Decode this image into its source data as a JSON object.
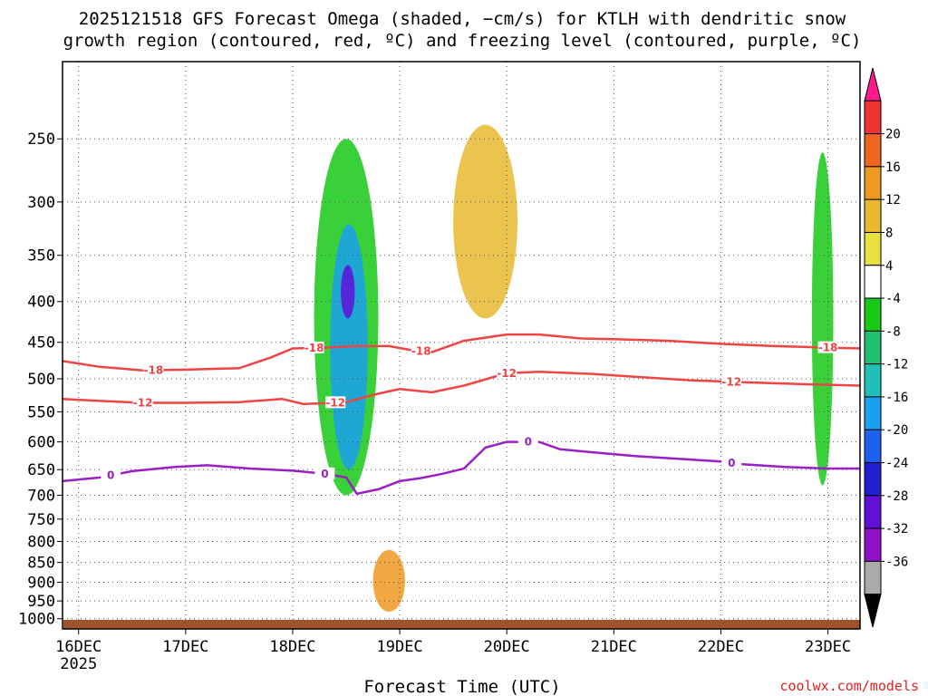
{
  "title_lines": [
    "2025121518 GFS Forecast Omega (shaded, −cm/s) for KTLH with dendritic snow",
    "growth region (contoured, red, ºC) and freezing level (contoured, purple, ºC)"
  ],
  "xlabel": "Forecast Time (UTC)",
  "credit": "coolwx.com/models",
  "colors": {
    "red_contour": "#ee4444",
    "purple_contour": "#9a1fc4",
    "terrain": "#a0522d",
    "grid": "#555555"
  },
  "chart_data": {
    "type": "heatmap",
    "title": "2025121518 GFS Forecast Omega (shaded, −cm/s) for KTLH with dendritic snow growth region (contoured, red, ºC) and freezing level (contoured, purple, ºC)",
    "xlabel": "Forecast Time (UTC)",
    "ylabel": "",
    "x_unit": "days from 16DEC 00Z",
    "x_range": [
      -0.15,
      7.3
    ],
    "y_scale": "log",
    "y_range": [
      1030,
      200
    ],
    "x_ticks": [
      {
        "x": 0,
        "label": "16DEC",
        "sub": "2025"
      },
      {
        "x": 1,
        "label": "17DEC",
        "sub": ""
      },
      {
        "x": 2,
        "label": "18DEC",
        "sub": ""
      },
      {
        "x": 3,
        "label": "19DEC",
        "sub": ""
      },
      {
        "x": 4,
        "label": "20DEC",
        "sub": ""
      },
      {
        "x": 5,
        "label": "21DEC",
        "sub": ""
      },
      {
        "x": 6,
        "label": "22DEC",
        "sub": ""
      },
      {
        "x": 7,
        "label": "23DEC",
        "sub": ""
      }
    ],
    "y_ticks": [
      250,
      300,
      350,
      400,
      450,
      500,
      550,
      600,
      650,
      700,
      750,
      800,
      850,
      900,
      950,
      1000
    ],
    "colorbar": {
      "labels": [
        "20",
        "16",
        "12",
        "8",
        "4",
        "-4",
        "-8",
        "-12",
        "-16",
        "-20",
        "-24",
        "-28",
        "-32",
        "-36"
      ],
      "colors": [
        "#ff1a8c",
        "#ee3333",
        "#ee6622",
        "#ee9922",
        "#e8b830",
        "#e8e040",
        "#ffffff",
        "#18c818",
        "#20c070",
        "#20c0b8",
        "#1aa0f0",
        "#2060f0",
        "#2020d0",
        "#6010d8",
        "#9010c8",
        "#aaaaaa",
        "#000000"
      ]
    },
    "contours": [
      {
        "name": "-18",
        "color": "#ee4444",
        "label_x": [
          0.7,
          2.2,
          3.2,
          7.0
        ],
        "points": [
          [
            -0.15,
            475
          ],
          [
            0.2,
            483
          ],
          [
            0.6,
            488
          ],
          [
            1.0,
            487
          ],
          [
            1.5,
            485
          ],
          [
            1.8,
            470
          ],
          [
            2.0,
            458
          ],
          [
            2.3,
            457
          ],
          [
            2.6,
            455
          ],
          [
            2.9,
            455
          ],
          [
            3.1,
            460
          ],
          [
            3.3,
            463
          ],
          [
            3.6,
            448
          ],
          [
            4.0,
            440
          ],
          [
            4.3,
            440
          ],
          [
            4.7,
            445
          ],
          [
            5.0,
            446
          ],
          [
            5.5,
            448
          ],
          [
            6.0,
            452
          ],
          [
            6.5,
            455
          ],
          [
            7.0,
            457
          ],
          [
            7.3,
            458
          ]
        ]
      },
      {
        "name": "-12",
        "color": "#ee4444",
        "label_x": [
          0.6,
          2.4,
          4.0,
          6.1
        ],
        "points": [
          [
            -0.15,
            530
          ],
          [
            0.2,
            533
          ],
          [
            0.6,
            536
          ],
          [
            1.0,
            536
          ],
          [
            1.5,
            535
          ],
          [
            1.9,
            530
          ],
          [
            2.1,
            538
          ],
          [
            2.5,
            535
          ],
          [
            2.8,
            522
          ],
          [
            3.0,
            515
          ],
          [
            3.3,
            520
          ],
          [
            3.6,
            510
          ],
          [
            4.0,
            492
          ],
          [
            4.3,
            490
          ],
          [
            4.8,
            493
          ],
          [
            5.2,
            497
          ],
          [
            5.7,
            502
          ],
          [
            6.2,
            505
          ],
          [
            6.8,
            508
          ],
          [
            7.3,
            510
          ]
        ]
      },
      {
        "name": "0",
        "color": "#9a1fc4",
        "label_x": [
          0.3,
          2.3,
          4.2,
          6.1
        ],
        "points": [
          [
            -0.15,
            672
          ],
          [
            0.2,
            665
          ],
          [
            0.5,
            653
          ],
          [
            0.9,
            645
          ],
          [
            1.2,
            642
          ],
          [
            1.6,
            648
          ],
          [
            2.0,
            652
          ],
          [
            2.3,
            658
          ],
          [
            2.5,
            665
          ],
          [
            2.6,
            697
          ],
          [
            2.8,
            688
          ],
          [
            3.0,
            672
          ],
          [
            3.2,
            666
          ],
          [
            3.4,
            658
          ],
          [
            3.6,
            648
          ],
          [
            3.8,
            610
          ],
          [
            4.0,
            600
          ],
          [
            4.3,
            600
          ],
          [
            4.5,
            613
          ],
          [
            4.9,
            620
          ],
          [
            5.2,
            625
          ],
          [
            5.6,
            630
          ],
          [
            6.0,
            635
          ],
          [
            6.2,
            640
          ],
          [
            6.6,
            645
          ],
          [
            7.0,
            648
          ],
          [
            7.3,
            648
          ]
        ]
      }
    ],
    "omega_features": [
      {
        "x": [
          2.2,
          2.8
        ],
        "p": [
          250,
          700
        ],
        "value": -8,
        "note": "main ascent column green"
      },
      {
        "x": [
          2.35,
          2.7
        ],
        "p": [
          320,
          650
        ],
        "value": -16,
        "note": "cyan/blue core"
      },
      {
        "x": [
          2.45,
          2.58
        ],
        "p": [
          360,
          420
        ],
        "value": -28,
        "note": "purple max"
      },
      {
        "x": [
          2.75,
          3.05
        ],
        "p": [
          820,
          980
        ],
        "value": 12,
        "note": "orange/red downdraft near surface"
      },
      {
        "x": [
          3.5,
          4.1
        ],
        "p": [
          240,
          420
        ],
        "value": 8,
        "note": "orange subsidence aloft"
      },
      {
        "x": [
          6.85,
          7.05
        ],
        "p": [
          260,
          680
        ],
        "value": -8,
        "note": "green column near 23DEC"
      }
    ]
  }
}
